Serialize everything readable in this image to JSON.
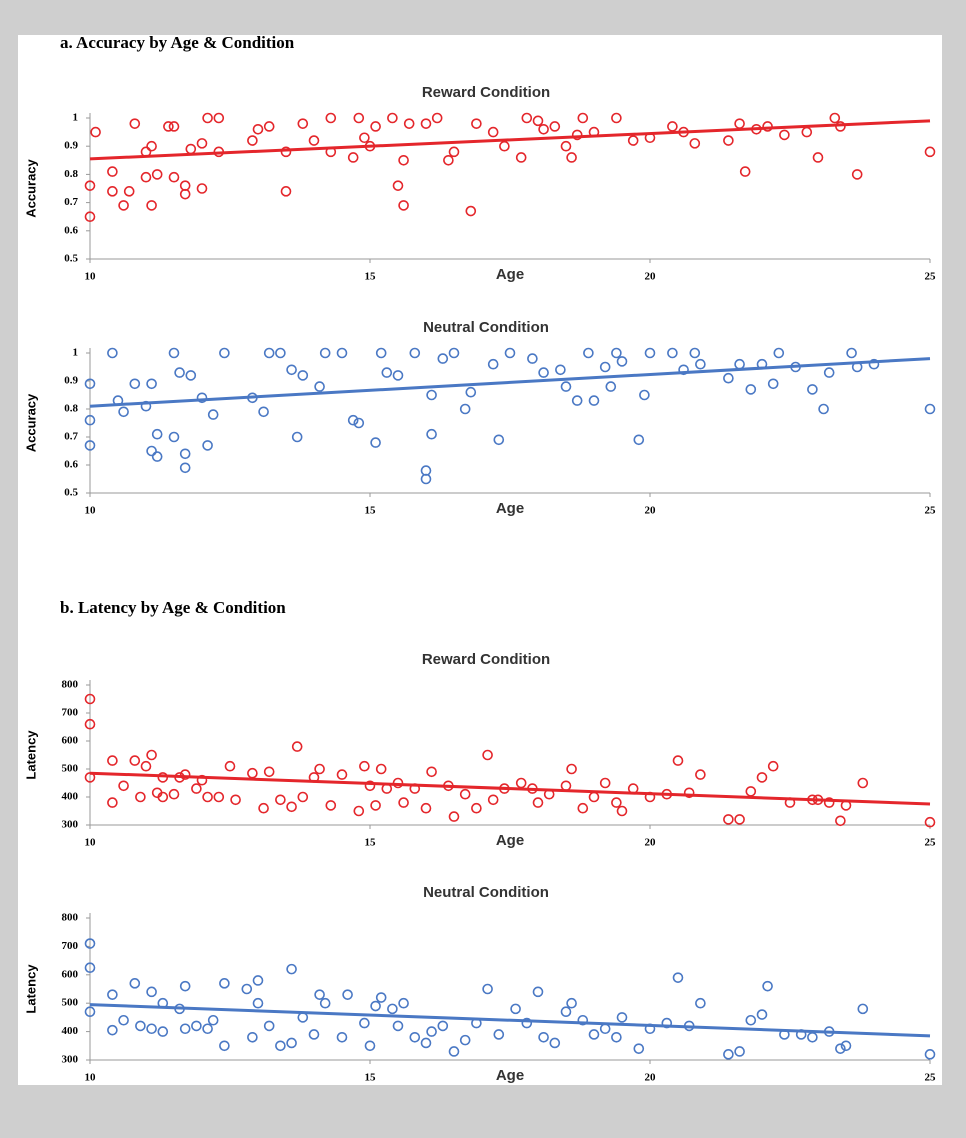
{
  "headings": [
    "a. Accuracy by Age & Condition",
    "b. Latency by Age & Condition"
  ],
  "chart_data": [
    {
      "type": "scatter",
      "title": "Reward Condition",
      "xlabel": "Age",
      "ylabel": "Accuracy",
      "color": "#e4262b",
      "xlim": [
        10,
        25
      ],
      "xticks": [
        10,
        15,
        20,
        25
      ],
      "ylim": [
        0.5,
        1
      ],
      "yticks": [
        0.5,
        0.6,
        0.7,
        0.8,
        0.9,
        1
      ],
      "x": [
        10.1,
        10.0,
        10.0,
        10.4,
        10.4,
        10.6,
        10.7,
        10.8,
        11.0,
        11.0,
        11.1,
        11.1,
        11.2,
        11.4,
        11.5,
        11.5,
        11.7,
        11.7,
        11.8,
        12.0,
        12.0,
        12.1,
        12.3,
        12.3,
        12.9,
        13.0,
        13.2,
        13.5,
        13.5,
        13.8,
        14.0,
        14.3,
        14.3,
        14.7,
        14.8,
        14.9,
        15.0,
        15.1,
        15.4,
        15.5,
        15.6,
        15.6,
        15.7,
        16.0,
        16.2,
        16.4,
        16.5,
        16.8,
        16.9,
        17.2,
        17.4,
        17.7,
        17.8,
        18.0,
        18.1,
        18.3,
        18.5,
        18.6,
        18.7,
        18.8,
        19.0,
        19.4,
        19.7,
        20.0,
        20.4,
        20.6,
        20.8,
        21.4,
        21.6,
        21.7,
        21.9,
        22.1,
        22.4,
        22.8,
        23.0,
        23.3,
        23.4,
        23.7,
        25.0
      ],
      "values": [
        0.95,
        0.76,
        0.65,
        0.81,
        0.74,
        0.69,
        0.74,
        0.98,
        0.79,
        0.88,
        0.9,
        0.69,
        0.8,
        0.97,
        0.97,
        0.79,
        0.76,
        0.73,
        0.89,
        0.75,
        0.91,
        1,
        0.88,
        1,
        0.92,
        0.96,
        0.97,
        0.74,
        0.88,
        0.98,
        0.92,
        1,
        0.88,
        0.86,
        1,
        0.93,
        0.9,
        0.97,
        1,
        0.76,
        0.69,
        0.85,
        0.98,
        0.98,
        1,
        0.85,
        0.88,
        0.67,
        0.98,
        0.95,
        0.9,
        0.86,
        1,
        0.99,
        0.96,
        0.97,
        0.9,
        0.86,
        0.94,
        1,
        0.95,
        1,
        0.92,
        0.93,
        0.97,
        0.95,
        0.91,
        0.92,
        0.98,
        0.81,
        0.96,
        0.97,
        0.94,
        0.95,
        0.86,
        1,
        0.97,
        0.8,
        0.88
      ],
      "trend": {
        "x": [
          10,
          25
        ],
        "values": [
          0.855,
          0.99
        ]
      }
    },
    {
      "type": "scatter",
      "title": "Neutral Condition",
      "xlabel": "Age",
      "ylabel": "Accuracy",
      "color": "#4a78c4",
      "xlim": [
        10,
        25
      ],
      "xticks": [
        10,
        15,
        20,
        25
      ],
      "ylim": [
        0.5,
        1
      ],
      "yticks": [
        0.5,
        0.6,
        0.7,
        0.8,
        0.9,
        1
      ],
      "x": [
        10.0,
        10.0,
        10.0,
        10.4,
        10.5,
        10.6,
        10.8,
        11.0,
        11.1,
        11.1,
        11.2,
        11.2,
        11.5,
        11.5,
        11.6,
        11.7,
        11.7,
        11.8,
        12.0,
        12.1,
        12.2,
        12.4,
        12.9,
        13.1,
        13.2,
        13.4,
        13.6,
        13.7,
        13.8,
        14.1,
        14.2,
        14.5,
        14.7,
        14.8,
        15.1,
        15.2,
        15.3,
        15.5,
        15.8,
        16.0,
        16.0,
        16.1,
        16.1,
        16.3,
        16.5,
        16.7,
        16.8,
        17.2,
        17.3,
        17.5,
        17.9,
        18.1,
        18.4,
        18.5,
        18.7,
        18.9,
        19.0,
        19.2,
        19.3,
        19.4,
        19.5,
        19.8,
        19.9,
        20.0,
        20.4,
        20.6,
        20.8,
        20.9,
        21.4,
        21.6,
        21.8,
        22.0,
        22.2,
        22.3,
        22.6,
        22.9,
        23.1,
        23.2,
        23.6,
        23.7,
        24.0,
        25.0
      ],
      "values": [
        0.89,
        0.76,
        0.67,
        1,
        0.83,
        0.79,
        0.89,
        0.81,
        0.89,
        0.65,
        0.71,
        0.63,
        1,
        0.7,
        0.93,
        0.64,
        0.59,
        0.92,
        0.84,
        0.67,
        0.78,
        1,
        0.84,
        0.79,
        1,
        1,
        0.94,
        0.7,
        0.92,
        0.88,
        1,
        1,
        0.76,
        0.75,
        0.68,
        1,
        0.93,
        0.92,
        1,
        0.55,
        0.58,
        0.85,
        0.71,
        0.98,
        1,
        0.8,
        0.86,
        0.96,
        0.69,
        1,
        0.98,
        0.93,
        0.94,
        0.88,
        0.83,
        1,
        0.83,
        0.95,
        0.88,
        1,
        0.97,
        0.69,
        0.85,
        1,
        1,
        0.94,
        1,
        0.96,
        0.91,
        0.96,
        0.87,
        0.96,
        0.89,
        1,
        0.95,
        0.87,
        0.8,
        0.93,
        1,
        0.95,
        0.96,
        0.8
      ],
      "trend": {
        "x": [
          10,
          25
        ],
        "values": [
          0.81,
          0.98
        ]
      }
    },
    {
      "type": "scatter",
      "title": "Reward Condition",
      "xlabel": "Age",
      "ylabel": "Latency",
      "color": "#e4262b",
      "xlim": [
        10,
        25
      ],
      "xticks": [
        10,
        15,
        20,
        25
      ],
      "ylim": [
        300,
        800
      ],
      "yticks": [
        300,
        400,
        500,
        600,
        700,
        800
      ],
      "x": [
        10.0,
        10.0,
        10.0,
        10.4,
        10.4,
        10.6,
        10.8,
        10.9,
        11.0,
        11.1,
        11.2,
        11.3,
        11.3,
        11.5,
        11.6,
        11.7,
        11.9,
        12.0,
        12.1,
        12.3,
        12.5,
        12.6,
        12.9,
        13.1,
        13.2,
        13.4,
        13.6,
        13.7,
        13.8,
        14.0,
        14.1,
        14.3,
        14.5,
        14.8,
        14.9,
        15.0,
        15.1,
        15.2,
        15.3,
        15.5,
        15.6,
        15.8,
        16.0,
        16.1,
        16.4,
        16.5,
        16.7,
        16.9,
        17.1,
        17.2,
        17.4,
        17.7,
        17.9,
        18.0,
        18.2,
        18.5,
        18.6,
        18.8,
        19.0,
        19.2,
        19.4,
        19.5,
        19.7,
        20.0,
        20.3,
        20.5,
        20.7,
        20.9,
        21.4,
        21.6,
        21.8,
        22.0,
        22.2,
        22.5,
        22.9,
        23.0,
        23.2,
        23.4,
        23.5,
        23.8,
        25.0
      ],
      "values": [
        750,
        660,
        470,
        530,
        380,
        440,
        530,
        400,
        510,
        550,
        415,
        470,
        400,
        410,
        470,
        480,
        430,
        460,
        400,
        400,
        510,
        390,
        485,
        360,
        490,
        390,
        365,
        580,
        400,
        470,
        500,
        370,
        480,
        350,
        510,
        440,
        370,
        500,
        430,
        450,
        380,
        430,
        360,
        490,
        440,
        330,
        410,
        360,
        550,
        390,
        430,
        450,
        430,
        380,
        410,
        440,
        500,
        360,
        400,
        450,
        380,
        350,
        430,
        400,
        410,
        530,
        415,
        480,
        320,
        320,
        420,
        470,
        510,
        380,
        390,
        390,
        380,
        315,
        370,
        450,
        310
      ],
      "trend": {
        "x": [
          10,
          25
        ],
        "values": [
          485,
          375
        ]
      }
    },
    {
      "type": "scatter",
      "title": "Neutral Condition",
      "xlabel": "Age",
      "ylabel": "Latency",
      "color": "#4a78c4",
      "xlim": [
        10,
        25
      ],
      "xticks": [
        10,
        15,
        20,
        25
      ],
      "ylim": [
        300,
        800
      ],
      "yticks": [
        300,
        400,
        500,
        600,
        700,
        800
      ],
      "x": [
        10.0,
        10.0,
        10.0,
        10.4,
        10.4,
        10.6,
        10.8,
        10.9,
        11.1,
        11.1,
        11.3,
        11.3,
        11.6,
        11.7,
        11.7,
        11.9,
        12.1,
        12.2,
        12.4,
        12.4,
        12.8,
        12.9,
        13.0,
        13.0,
        13.2,
        13.4,
        13.6,
        13.6,
        13.8,
        14.0,
        14.1,
        14.2,
        14.5,
        14.6,
        14.9,
        15.0,
        15.1,
        15.2,
        15.4,
        15.5,
        15.6,
        15.8,
        16.0,
        16.1,
        16.3,
        16.5,
        16.7,
        16.9,
        17.1,
        17.3,
        17.6,
        17.8,
        18.0,
        18.1,
        18.3,
        18.5,
        18.6,
        18.8,
        19.0,
        19.2,
        19.4,
        19.5,
        19.8,
        20.0,
        20.3,
        20.5,
        20.7,
        20.9,
        21.4,
        21.6,
        21.8,
        22.0,
        22.1,
        22.4,
        22.7,
        22.9,
        23.2,
        23.4,
        23.5,
        23.8,
        25.0
      ],
      "values": [
        710,
        625,
        470,
        530,
        405,
        440,
        570,
        420,
        540,
        410,
        500,
        400,
        480,
        410,
        560,
        420,
        410,
        440,
        570,
        350,
        550,
        380,
        580,
        500,
        420,
        350,
        620,
        360,
        450,
        390,
        530,
        500,
        380,
        530,
        430,
        350,
        490,
        520,
        480,
        420,
        500,
        380,
        360,
        400,
        420,
        330,
        370,
        430,
        550,
        390,
        480,
        430,
        540,
        380,
        360,
        470,
        500,
        440,
        390,
        410,
        380,
        450,
        340,
        410,
        430,
        590,
        420,
        500,
        320,
        330,
        440,
        460,
        560,
        390,
        390,
        380,
        400,
        340,
        350,
        480,
        320
      ],
      "trend": {
        "x": [
          10,
          25
        ],
        "values": [
          495,
          385
        ]
      }
    }
  ]
}
